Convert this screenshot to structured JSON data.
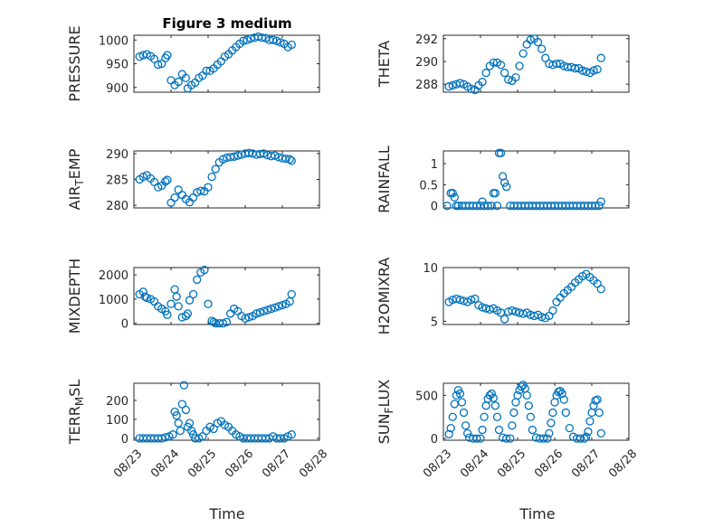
{
  "figure": {
    "title": "Figure 3 medium",
    "x_axis_label": "Time",
    "x_tick_labels": [
      "08/23",
      "08/24",
      "08/25",
      "08/26",
      "08/27",
      "08/28"
    ],
    "marker_color": "#0072BD"
  },
  "chart_data": [
    {
      "type": "scatter",
      "ylabel_main": "PRESSURE",
      "ylabel_sub": "",
      "ylabel_tail": "",
      "ylim": [
        890,
        1010
      ],
      "yticks": [
        900,
        950,
        1000
      ],
      "xlim": [
        0,
        5
      ],
      "grid": true,
      "xlabel": "",
      "title": "Figure 3 medium",
      "x": [
        0.15,
        0.25,
        0.35,
        0.45,
        0.55,
        0.65,
        0.75,
        0.85,
        0.9,
        1.0,
        1.1,
        1.2,
        1.3,
        1.4,
        1.45,
        1.55,
        1.65,
        1.75,
        1.85,
        1.95,
        2.05,
        2.15,
        2.25,
        2.35,
        2.45,
        2.55,
        2.65,
        2.75,
        2.85,
        2.95,
        3.05,
        3.15,
        3.25,
        3.35,
        3.45,
        3.55,
        3.65,
        3.75,
        3.85,
        3.95,
        4.05,
        4.15,
        4.25
      ],
      "y": [
        965,
        968,
        970,
        966,
        960,
        948,
        950,
        962,
        968,
        915,
        905,
        912,
        928,
        920,
        898,
        905,
        910,
        920,
        925,
        935,
        935,
        940,
        948,
        955,
        965,
        970,
        978,
        985,
        992,
        998,
        1000,
        1003,
        1005,
        1007,
        1005,
        1004,
        1000,
        1000,
        998,
        995,
        992,
        985,
        990
      ]
    },
    {
      "type": "scatter",
      "ylabel_main": "THETA",
      "ylabel_sub": "",
      "ylabel_tail": "",
      "ylim": [
        287.3,
        292.3
      ],
      "yticks": [
        288,
        290,
        292
      ],
      "xlim": [
        0,
        5
      ],
      "grid": true,
      "xlabel": "",
      "x": [
        0.15,
        0.25,
        0.35,
        0.45,
        0.55,
        0.65,
        0.75,
        0.85,
        0.95,
        1.05,
        1.15,
        1.25,
        1.35,
        1.45,
        1.55,
        1.65,
        1.75,
        1.85,
        1.95,
        2.05,
        2.15,
        2.25,
        2.35,
        2.45,
        2.55,
        2.65,
        2.75,
        2.85,
        2.95,
        3.05,
        3.15,
        3.25,
        3.35,
        3.45,
        3.55,
        3.65,
        3.75,
        3.85,
        3.95,
        4.05,
        4.15,
        4.25
      ],
      "y": [
        287.8,
        287.9,
        288.0,
        288.1,
        288.0,
        287.8,
        287.6,
        287.5,
        287.9,
        288.2,
        289.0,
        289.6,
        289.9,
        289.9,
        289.7,
        289.0,
        288.4,
        288.3,
        288.6,
        289.6,
        290.7,
        291.5,
        291.9,
        292.0,
        291.7,
        291.1,
        290.3,
        289.8,
        289.7,
        289.8,
        289.8,
        289.6,
        289.5,
        289.5,
        289.4,
        289.4,
        289.2,
        289.1,
        289.0,
        289.2,
        289.3,
        290.3
      ]
    },
    {
      "type": "scatter",
      "ylabel_main": "AIR",
      "ylabel_sub": "T",
      "ylabel_tail": "EMP",
      "ylim": [
        279.5,
        290.5
      ],
      "yticks": [
        280,
        285,
        290
      ],
      "xlim": [
        0,
        5
      ],
      "grid": true,
      "xlabel": "",
      "x": [
        0.15,
        0.25,
        0.35,
        0.45,
        0.55,
        0.65,
        0.75,
        0.85,
        0.9,
        1.0,
        1.1,
        1.2,
        1.3,
        1.4,
        1.5,
        1.6,
        1.7,
        1.8,
        1.9,
        2.0,
        2.1,
        2.2,
        2.3,
        2.4,
        2.5,
        2.6,
        2.7,
        2.8,
        2.9,
        3.0,
        3.1,
        3.2,
        3.3,
        3.4,
        3.5,
        3.6,
        3.7,
        3.8,
        3.9,
        4.0,
        4.1,
        4.2,
        4.25
      ],
      "y": [
        285.0,
        285.5,
        285.8,
        285.2,
        284.5,
        283.5,
        283.8,
        284.6,
        284.9,
        280.5,
        281.5,
        283.0,
        282.0,
        281.2,
        280.6,
        281.5,
        282.5,
        282.8,
        282.7,
        283.5,
        285.5,
        287.0,
        288.3,
        288.9,
        289.2,
        289.3,
        289.4,
        289.6,
        289.8,
        290.0,
        290.1,
        290.0,
        289.8,
        289.9,
        290.0,
        289.7,
        289.5,
        289.6,
        289.3,
        289.1,
        289.0,
        288.9,
        288.6
      ]
    },
    {
      "type": "scatter",
      "ylabel_main": "RAINFALL",
      "ylabel_sub": "",
      "ylabel_tail": "",
      "ylim": [
        -0.05,
        1.3
      ],
      "yticks": [
        0,
        0.5,
        1
      ],
      "ytick_labels": [
        "0",
        "0.5",
        "1"
      ],
      "xlim": [
        0,
        5
      ],
      "grid": true,
      "xlabel": "",
      "x": [
        0.1,
        0.2,
        0.25,
        0.3,
        0.35,
        0.4,
        0.5,
        0.6,
        0.7,
        0.8,
        0.9,
        1.0,
        1.05,
        1.1,
        1.2,
        1.3,
        1.35,
        1.4,
        1.45,
        1.5,
        1.55,
        1.6,
        1.65,
        1.7,
        1.8,
        1.9,
        2.0,
        2.1,
        2.2,
        2.3,
        2.4,
        2.5,
        2.6,
        2.7,
        2.8,
        2.9,
        3.0,
        3.1,
        3.2,
        3.3,
        3.4,
        3.5,
        3.6,
        3.7,
        3.8,
        3.9,
        4.0,
        4.1,
        4.2,
        4.25
      ],
      "y": [
        0,
        0.3,
        0.3,
        0.2,
        0,
        0,
        0,
        0,
        0,
        0,
        0,
        0,
        0.1,
        0,
        0,
        0,
        0.3,
        0.3,
        0,
        1.25,
        1.25,
        0.7,
        0.55,
        0.45,
        0,
        0,
        0,
        0,
        0,
        0,
        0,
        0,
        0,
        0,
        0,
        0,
        0,
        0,
        0,
        0,
        0,
        0,
        0,
        0,
        0,
        0,
        0,
        0,
        0,
        0.1
      ]
    },
    {
      "type": "scatter",
      "ylabel_main": "MIXDEPTH",
      "ylabel_sub": "",
      "ylabel_tail": "",
      "ylim": [
        -50,
        2300
      ],
      "yticks": [
        0,
        1000,
        2000
      ],
      "xlim": [
        0,
        5
      ],
      "grid": true,
      "xlabel": "",
      "x": [
        0.15,
        0.25,
        0.3,
        0.35,
        0.45,
        0.55,
        0.65,
        0.75,
        0.85,
        0.9,
        1.0,
        1.1,
        1.15,
        1.2,
        1.3,
        1.4,
        1.45,
        1.5,
        1.6,
        1.7,
        1.8,
        1.9,
        2.0,
        2.1,
        2.15,
        2.2,
        2.3,
        2.4,
        2.5,
        2.6,
        2.7,
        2.8,
        2.9,
        3.0,
        3.1,
        3.2,
        3.3,
        3.4,
        3.5,
        3.6,
        3.7,
        3.8,
        3.9,
        4.0,
        4.1,
        4.2,
        4.25
      ],
      "y": [
        1200,
        1300,
        1100,
        1050,
        1000,
        900,
        700,
        600,
        500,
        350,
        800,
        1400,
        1100,
        700,
        250,
        300,
        400,
        950,
        1200,
        1800,
        2100,
        2200,
        800,
        100,
        50,
        0,
        0,
        0,
        50,
        400,
        600,
        500,
        300,
        200,
        250,
        300,
        400,
        450,
        500,
        550,
        600,
        650,
        700,
        750,
        800,
        900,
        1200
      ]
    },
    {
      "type": "scatter",
      "ylabel_main": "H2OMIXRA",
      "ylabel_sub": "",
      "ylabel_tail": "",
      "ylim": [
        4.7,
        10.0
      ],
      "yticks": [
        5,
        10
      ],
      "xlim": [
        0,
        5
      ],
      "grid": true,
      "xlabel": "",
      "x": [
        0.15,
        0.25,
        0.35,
        0.45,
        0.55,
        0.65,
        0.75,
        0.85,
        0.95,
        1.05,
        1.15,
        1.25,
        1.35,
        1.45,
        1.55,
        1.65,
        1.75,
        1.85,
        1.95,
        2.05,
        2.15,
        2.25,
        2.35,
        2.45,
        2.55,
        2.65,
        2.75,
        2.85,
        2.95,
        3.05,
        3.15,
        3.25,
        3.35,
        3.45,
        3.55,
        3.65,
        3.75,
        3.85,
        3.95,
        4.05,
        4.15,
        4.25
      ],
      "y": [
        6.8,
        7.0,
        7.1,
        7.0,
        6.9,
        6.8,
        7.0,
        7.1,
        6.5,
        6.3,
        6.2,
        6.1,
        6.2,
        6.0,
        5.8,
        5.2,
        5.9,
        6.0,
        5.9,
        5.8,
        5.7,
        5.8,
        5.6,
        5.5,
        5.6,
        5.4,
        5.3,
        5.5,
        6.0,
        6.8,
        7.2,
        7.6,
        7.9,
        8.2,
        8.6,
        8.9,
        9.2,
        9.4,
        9.1,
        8.8,
        8.5,
        8.0
      ]
    },
    {
      "type": "scatter",
      "ylabel_main": "TERR",
      "ylabel_sub": "M",
      "ylabel_tail": "SL",
      "ylim": [
        -10,
        290
      ],
      "yticks": [
        0,
        100,
        200
      ],
      "xlim": [
        0,
        5
      ],
      "grid": true,
      "xlabel": "Time",
      "x": [
        0.15,
        0.25,
        0.35,
        0.45,
        0.55,
        0.65,
        0.75,
        0.85,
        0.95,
        1.05,
        1.1,
        1.15,
        1.2,
        1.25,
        1.3,
        1.35,
        1.4,
        1.45,
        1.5,
        1.55,
        1.6,
        1.65,
        1.75,
        1.85,
        1.95,
        2.05,
        2.15,
        2.25,
        2.35,
        2.45,
        2.55,
        2.65,
        2.75,
        2.85,
        2.95,
        3.05,
        3.15,
        3.25,
        3.35,
        3.45,
        3.55,
        3.65,
        3.75,
        3.85,
        3.95,
        4.05,
        4.15,
        4.25
      ],
      "y": [
        0,
        0,
        0,
        0,
        0,
        0,
        0,
        5,
        10,
        20,
        140,
        120,
        80,
        40,
        180,
        280,
        150,
        60,
        80,
        40,
        20,
        0,
        0,
        10,
        40,
        60,
        50,
        80,
        90,
        70,
        60,
        40,
        20,
        10,
        0,
        0,
        0,
        0,
        0,
        0,
        0,
        0,
        10,
        0,
        0,
        0,
        10,
        20
      ]
    },
    {
      "type": "scatter",
      "ylabel_main": "SUN",
      "ylabel_sub": "F",
      "ylabel_tail": "LUX",
      "ylim": [
        -20,
        640
      ],
      "yticks": [
        0,
        500
      ],
      "xlim": [
        0,
        5
      ],
      "grid": true,
      "xlabel": "Time",
      "x": [
        0.15,
        0.2,
        0.25,
        0.3,
        0.35,
        0.4,
        0.45,
        0.5,
        0.55,
        0.6,
        0.65,
        0.7,
        0.8,
        0.9,
        1.0,
        1.05,
        1.1,
        1.15,
        1.2,
        1.25,
        1.3,
        1.35,
        1.4,
        1.45,
        1.5,
        1.6,
        1.7,
        1.8,
        1.85,
        1.9,
        1.95,
        2.0,
        2.05,
        2.1,
        2.15,
        2.2,
        2.25,
        2.3,
        2.35,
        2.4,
        2.5,
        2.6,
        2.7,
        2.8,
        2.85,
        2.9,
        2.95,
        3.0,
        3.05,
        3.1,
        3.15,
        3.2,
        3.25,
        3.3,
        3.4,
        3.5,
        3.6,
        3.7,
        3.8,
        3.85,
        3.9,
        3.95,
        4.0,
        4.05,
        4.1,
        4.15,
        4.2,
        4.25
      ],
      "y": [
        50,
        120,
        250,
        400,
        500,
        560,
        520,
        420,
        300,
        150,
        60,
        10,
        0,
        0,
        0,
        100,
        250,
        380,
        460,
        500,
        520,
        470,
        380,
        250,
        100,
        10,
        0,
        0,
        150,
        300,
        420,
        500,
        560,
        600,
        620,
        580,
        500,
        380,
        250,
        100,
        10,
        0,
        0,
        0,
        60,
        180,
        300,
        420,
        500,
        540,
        550,
        520,
        450,
        300,
        120,
        20,
        0,
        0,
        0,
        20,
        80,
        200,
        300,
        380,
        440,
        450,
        300,
        60
      ]
    }
  ]
}
